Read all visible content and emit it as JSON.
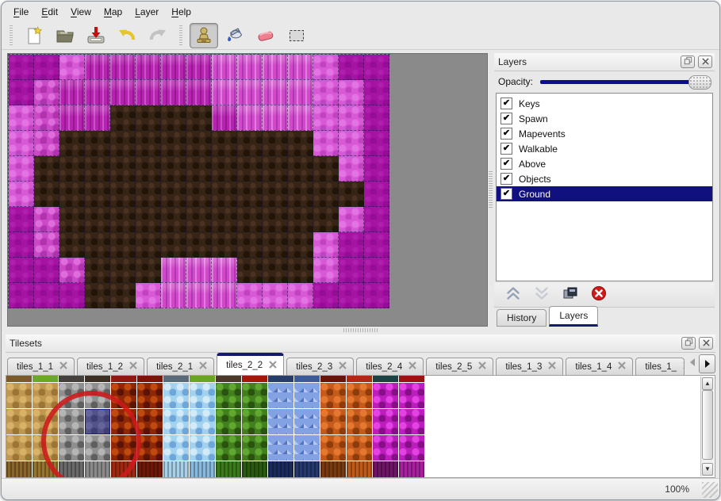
{
  "menu": {
    "items": [
      {
        "label": "File"
      },
      {
        "label": "Edit"
      },
      {
        "label": "View"
      },
      {
        "label": "Map"
      },
      {
        "label": "Layer"
      },
      {
        "label": "Help"
      }
    ]
  },
  "toolbar": {
    "buttons": [
      {
        "name": "new-file",
        "icon": "new",
        "group": 1,
        "active": false
      },
      {
        "name": "open-file",
        "icon": "open",
        "group": 1,
        "active": false
      },
      {
        "name": "save-file",
        "icon": "save",
        "group": 1,
        "active": false
      },
      {
        "name": "undo",
        "icon": "undo",
        "group": 1,
        "active": false
      },
      {
        "name": "redo",
        "icon": "redo",
        "group": 1,
        "active": false
      },
      {
        "name": "stamp-tool",
        "icon": "stamp",
        "group": 2,
        "active": true
      },
      {
        "name": "fill-tool",
        "icon": "fill",
        "group": 2,
        "active": false
      },
      {
        "name": "eraser-tool",
        "icon": "eraser",
        "group": 2,
        "active": false
      },
      {
        "name": "rect-select-tool",
        "icon": "select",
        "group": 2,
        "active": false
      }
    ]
  },
  "canvas": {
    "background_color": "#8a8a8a",
    "map": {
      "tile_size": 32,
      "cols": 15,
      "rows": 10,
      "palette": {
        "A": {
          "desc": "dark-magenta-flat",
          "hex": "#a513a3"
        },
        "C": {
          "desc": "magenta-pillars",
          "hex": "#b822b2"
        },
        "P": {
          "desc": "bright-pink-pillars",
          "hex": "#d148cc"
        },
        "L": {
          "desc": "light-pink-scales",
          "hex": "#d859d6"
        },
        "R": {
          "desc": "light-pink-rocks",
          "hex": "#cb48c7"
        },
        "B": {
          "desc": "dark-brown-ground",
          "hex": "#362417"
        }
      },
      "grid": [
        "AALCCCCCPPPPLAA",
        "ARCCCCCCPPPPLLA",
        "LRCCBBBBCPPPLLA",
        "LRBBBBBBBBBBLLA",
        "LBBBBBBBBBBBBLA",
        "LBBBBBBBBBBBBBA",
        "ARBBBBBBBBBBBLA",
        "ARBBBBBBBBBBLAA",
        "AARBBBPPPBBBLAA",
        "AAABBLPPPLLLAAA"
      ]
    }
  },
  "layers_panel": {
    "title": "Layers",
    "opacity_label": "Opacity:",
    "opacity_value_percent": 97,
    "accent_color": "#10107e",
    "layers": [
      {
        "name": "Keys",
        "checked": true
      },
      {
        "name": "Spawn",
        "checked": true
      },
      {
        "name": "Mapevents",
        "checked": true
      },
      {
        "name": "Walkable",
        "checked": true
      },
      {
        "name": "Above",
        "checked": true
      },
      {
        "name": "Objects",
        "checked": true
      },
      {
        "name": "Ground",
        "checked": true
      }
    ],
    "selected_layer": "Ground",
    "buttons": [
      {
        "name": "raise-layer",
        "icon": "raise",
        "enabled": true
      },
      {
        "name": "lower-layer",
        "icon": "lower",
        "enabled": false
      },
      {
        "name": "duplicate-layer",
        "icon": "duplicate",
        "enabled": true
      },
      {
        "name": "delete-layer",
        "icon": "delete",
        "enabled": true
      }
    ],
    "tabs": [
      {
        "label": "History",
        "active": false
      },
      {
        "label": "Layers",
        "active": true
      }
    ]
  },
  "tilesets_panel": {
    "title": "Tilesets",
    "tabs": [
      {
        "label": "tiles_1_1",
        "active": false,
        "truncated": false
      },
      {
        "label": "tiles_1_2",
        "active": false,
        "truncated": false
      },
      {
        "label": "tiles_2_1",
        "active": false,
        "truncated": false
      },
      {
        "label": "tiles_2_2",
        "active": true,
        "truncated": false
      },
      {
        "label": "tiles_2_3",
        "active": false,
        "truncated": false
      },
      {
        "label": "tiles_2_4",
        "active": false,
        "truncated": false
      },
      {
        "label": "tiles_2_5",
        "active": false,
        "truncated": false
      },
      {
        "label": "tiles_1_3",
        "active": false,
        "truncated": false
      },
      {
        "label": "tiles_1_4",
        "active": false,
        "truncated": false
      },
      {
        "label": "tiles_1_",
        "active": false,
        "truncated": true
      }
    ],
    "tileset": {
      "tile_size": 32,
      "columns": [
        {
          "family": "dirt",
          "top": "#7a5a28",
          "bottom": "#8a6428"
        },
        {
          "family": "dirt",
          "top": "#6aa828",
          "bottom": "#96742e"
        },
        {
          "family": "rock",
          "top": "#44403c",
          "bottom": "#6a6a6a"
        },
        {
          "family": "rock",
          "top": "#3c2e22",
          "bottom": "#8a8a8a"
        },
        {
          "family": "lava",
          "top": "#8c1a10",
          "bottom": "#a02810"
        },
        {
          "family": "lava",
          "top": "#7a1408",
          "bottom": "#701808"
        },
        {
          "family": "ice",
          "top": "#5a6a78",
          "bottom": "#a8d0e8"
        },
        {
          "family": "ice",
          "top": "#68a428",
          "bottom": "#88b8dc"
        },
        {
          "family": "vine",
          "top": "#4a3828",
          "bottom": "#3a7a1a"
        },
        {
          "family": "vine",
          "top": "#a01808",
          "bottom": "#2a5a10"
        },
        {
          "family": "crystal",
          "top": "#283c6a",
          "bottom": "#1a2a5c"
        },
        {
          "family": "crystal",
          "top": "#3a5a9a",
          "bottom": "#24386e"
        },
        {
          "family": "ember",
          "top": "#6a1208",
          "bottom": "#7a3a10"
        },
        {
          "family": "ember",
          "top": "#b02810",
          "bottom": "#c05a18"
        },
        {
          "family": "cell",
          "top": "#1a4444",
          "bottom": "#701468"
        },
        {
          "family": "cell",
          "top": "#a01010",
          "bottom": "#a820a0"
        }
      ],
      "selected_tile": {
        "col": 4,
        "row": 2
      },
      "annotation": {
        "type": "red-circle",
        "color": "#cc1a1a"
      }
    }
  },
  "status_bar": {
    "zoom": "100%"
  }
}
